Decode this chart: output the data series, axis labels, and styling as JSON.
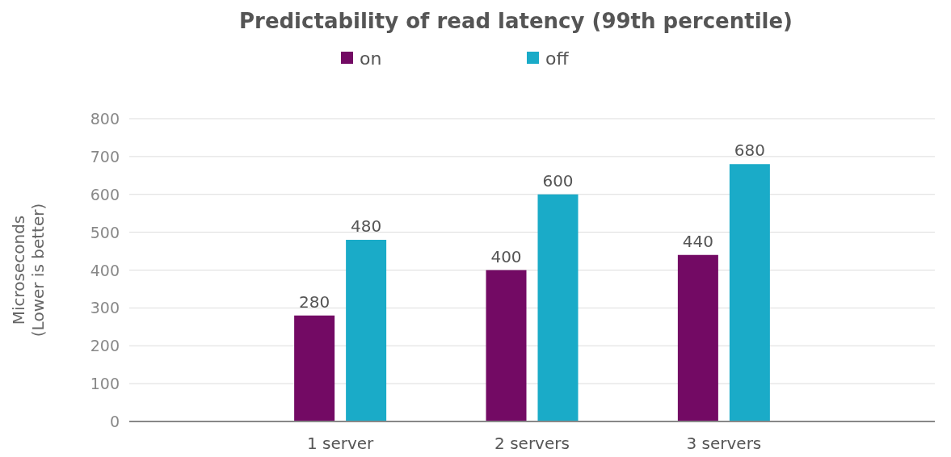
{
  "chart_data": {
    "type": "bar",
    "title": "Predictability of read latency (99th percentile)",
    "ylabel": "Microseconds\n(Lower is better)",
    "categories": [
      "1 server",
      "2 servers",
      "3 servers"
    ],
    "series": [
      {
        "name": "on",
        "color": "#730a64",
        "values": [
          280,
          400,
          440
        ]
      },
      {
        "name": "off",
        "color": "#1aabc8",
        "values": [
          480,
          600,
          680
        ]
      }
    ],
    "ylim": [
      0,
      800
    ],
    "yticks": [
      0,
      100,
      200,
      300,
      400,
      500,
      600,
      700,
      800
    ],
    "grid": "y",
    "legend": "top",
    "data_labels": true
  }
}
